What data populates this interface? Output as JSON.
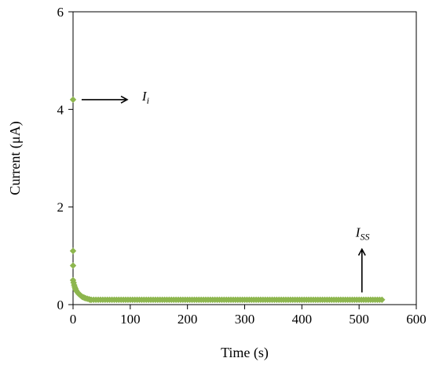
{
  "chart_data": {
    "type": "scatter",
    "title": "",
    "xlabel": "Time (s)",
    "ylabel": "Current (μA)",
    "xlim": [
      0,
      600
    ],
    "ylim": [
      0,
      6
    ],
    "x_ticks": [
      0,
      100,
      200,
      300,
      400,
      500,
      600
    ],
    "y_ticks": [
      0,
      2,
      4,
      6
    ],
    "x_tick_labels": [
      "0",
      "100",
      "200",
      "300",
      "400",
      "500",
      "600"
    ],
    "y_tick_labels": [
      "0",
      "2",
      "4",
      "6"
    ],
    "grid": false,
    "marker": "diamond",
    "color": "#8db64e",
    "series": [
      {
        "points": [
          [
            0,
            4.2
          ],
          [
            0,
            1.1
          ],
          [
            0,
            0.8
          ],
          [
            0,
            0.5
          ],
          [
            1,
            0.45
          ],
          [
            2,
            0.4
          ],
          [
            3,
            0.36
          ],
          [
            4,
            0.33
          ],
          [
            5,
            0.3
          ],
          [
            6,
            0.28
          ],
          [
            8,
            0.25
          ],
          [
            10,
            0.22
          ],
          [
            12,
            0.2
          ],
          [
            14,
            0.18
          ],
          [
            16,
            0.16
          ],
          [
            18,
            0.15
          ],
          [
            20,
            0.14
          ],
          [
            22,
            0.13
          ],
          [
            25,
            0.12
          ],
          [
            28,
            0.11
          ],
          [
            30,
            0.1
          ]
        ],
        "plateau": {
          "x_start": 32,
          "x_end": 540,
          "step": 4,
          "y": 0.1
        }
      }
    ],
    "annotations": [
      {
        "id": "initial",
        "main": "I",
        "sub": "i",
        "direction": "right",
        "x": 15,
        "y": 4.2
      },
      {
        "id": "steady",
        "main": "I",
        "sub": "SS",
        "direction": "up",
        "x": 505,
        "y": 0.25
      }
    ]
  }
}
